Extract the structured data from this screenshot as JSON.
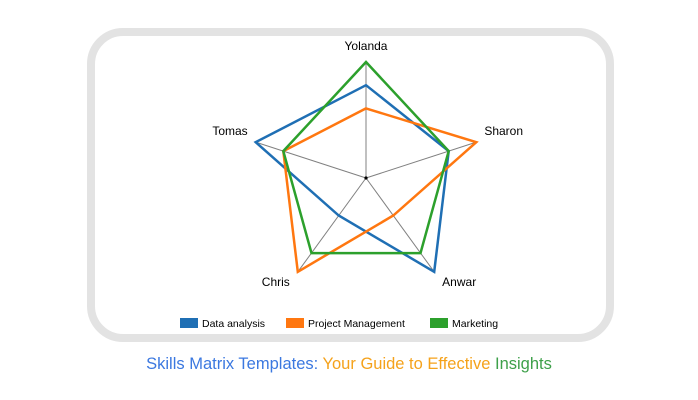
{
  "chart_data": {
    "type": "radar",
    "title": "",
    "axes": [
      "Yolanda",
      "Sharon",
      "Anwar",
      "Chris",
      "Tomas"
    ],
    "range": [
      0,
      10
    ],
    "grid": false,
    "legend_position": "bottom",
    "series": [
      {
        "name": "Data analysis",
        "color": "#1f6fb4",
        "values": [
          8,
          7.5,
          10,
          4,
          10
        ]
      },
      {
        "name": "Project Management",
        "color": "#ff7710",
        "values": [
          6,
          10,
          4,
          10,
          7.5
        ]
      },
      {
        "name": "Marketing",
        "color": "#2ca02c",
        "values": [
          10,
          7.5,
          8,
          8,
          7.5
        ]
      }
    ]
  },
  "legend": {
    "items": [
      {
        "label": "Data analysis",
        "color": "#1f6fb4"
      },
      {
        "label": "Project Management",
        "color": "#ff7710"
      },
      {
        "label": "Marketing",
        "color": "#2ca02c"
      }
    ]
  },
  "caption": {
    "part1": "Skills Matrix Templates:",
    "part2": "Your Guide to Effective",
    "part3": "Insights",
    "colors": {
      "part1": "#3b78e0",
      "part2": "#f5a21b",
      "part3": "#3ea04a"
    }
  }
}
